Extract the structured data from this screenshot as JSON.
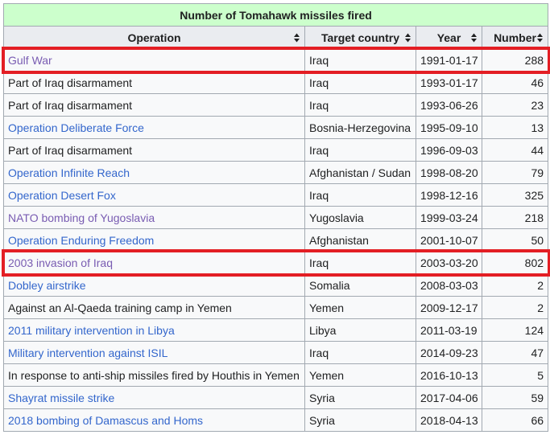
{
  "table": {
    "caption": "Number of Tomahawk missiles fired",
    "columns": [
      "Operation",
      "Target country",
      "Year",
      "Number"
    ],
    "rows": [
      {
        "operation": "Gulf War",
        "link": true,
        "visited": true,
        "country": "Iraq",
        "date": "1991-01-17",
        "number": "288",
        "highlighted": true
      },
      {
        "operation": "Part of Iraq disarmament",
        "link": false,
        "visited": false,
        "country": "Iraq",
        "date": "1993-01-17",
        "number": "46",
        "highlighted": false
      },
      {
        "operation": "Part of Iraq disarmament",
        "link": false,
        "visited": false,
        "country": "Iraq",
        "date": "1993-06-26",
        "number": "23",
        "highlighted": false
      },
      {
        "operation": "Operation Deliberate Force",
        "link": true,
        "visited": false,
        "country": "Bosnia-Herzegovina",
        "date": "1995-09-10",
        "number": "13",
        "highlighted": false
      },
      {
        "operation": "Part of Iraq disarmament",
        "link": false,
        "visited": false,
        "country": "Iraq",
        "date": "1996-09-03",
        "number": "44",
        "highlighted": false
      },
      {
        "operation": "Operation Infinite Reach",
        "link": true,
        "visited": false,
        "country": "Afghanistan / Sudan",
        "date": "1998-08-20",
        "number": "79",
        "highlighted": false
      },
      {
        "operation": "Operation Desert Fox",
        "link": true,
        "visited": false,
        "country": "Iraq",
        "date": "1998-12-16",
        "number": "325",
        "highlighted": false
      },
      {
        "operation": "NATO bombing of Yugoslavia",
        "link": true,
        "visited": true,
        "country": "Yugoslavia",
        "date": "1999-03-24",
        "number": "218",
        "highlighted": false
      },
      {
        "operation": "Operation Enduring Freedom",
        "link": true,
        "visited": false,
        "country": "Afghanistan",
        "date": "2001-10-07",
        "number": "50",
        "highlighted": false
      },
      {
        "operation": "2003 invasion of Iraq",
        "link": true,
        "visited": true,
        "country": "Iraq",
        "date": "2003-03-20",
        "number": "802",
        "highlighted": true
      },
      {
        "operation": "Dobley airstrike",
        "link": true,
        "visited": false,
        "country": "Somalia",
        "date": "2008-03-03",
        "number": "2",
        "highlighted": false
      },
      {
        "operation": "Against an Al-Qaeda training camp in Yemen",
        "link": false,
        "visited": false,
        "country": "Yemen",
        "date": "2009-12-17",
        "number": "2",
        "highlighted": false
      },
      {
        "operation": "2011 military intervention in Libya",
        "link": true,
        "visited": false,
        "country": "Libya",
        "date": "2011-03-19",
        "number": "124",
        "highlighted": false
      },
      {
        "operation": "Military intervention against ISIL",
        "link": true,
        "visited": false,
        "country": "Iraq",
        "date": "2014-09-23",
        "number": "47",
        "highlighted": false
      },
      {
        "operation": "In response to anti-ship missiles fired by Houthis in Yemen",
        "link": false,
        "visited": false,
        "country": "Yemen",
        "date": "2016-10-13",
        "number": "5",
        "highlighted": false
      },
      {
        "operation": "Shayrat missile strike",
        "link": true,
        "visited": false,
        "country": "Syria",
        "date": "2017-04-06",
        "number": "59",
        "highlighted": false
      },
      {
        "operation": "2018 bombing of Damascus and Homs",
        "link": true,
        "visited": false,
        "country": "Syria",
        "date": "2018-04-13",
        "number": "66",
        "highlighted": false
      }
    ]
  },
  "colors": {
    "caption_bg": "#ccffcc",
    "header_bg": "#eaecf0",
    "cell_bg": "#f8f9fa",
    "border": "#a2a9b1",
    "link": "#3366cc",
    "visited_link": "#795cb2",
    "highlight": "#e31e24"
  },
  "icons": {
    "sort": "sort-arrows-icon"
  }
}
